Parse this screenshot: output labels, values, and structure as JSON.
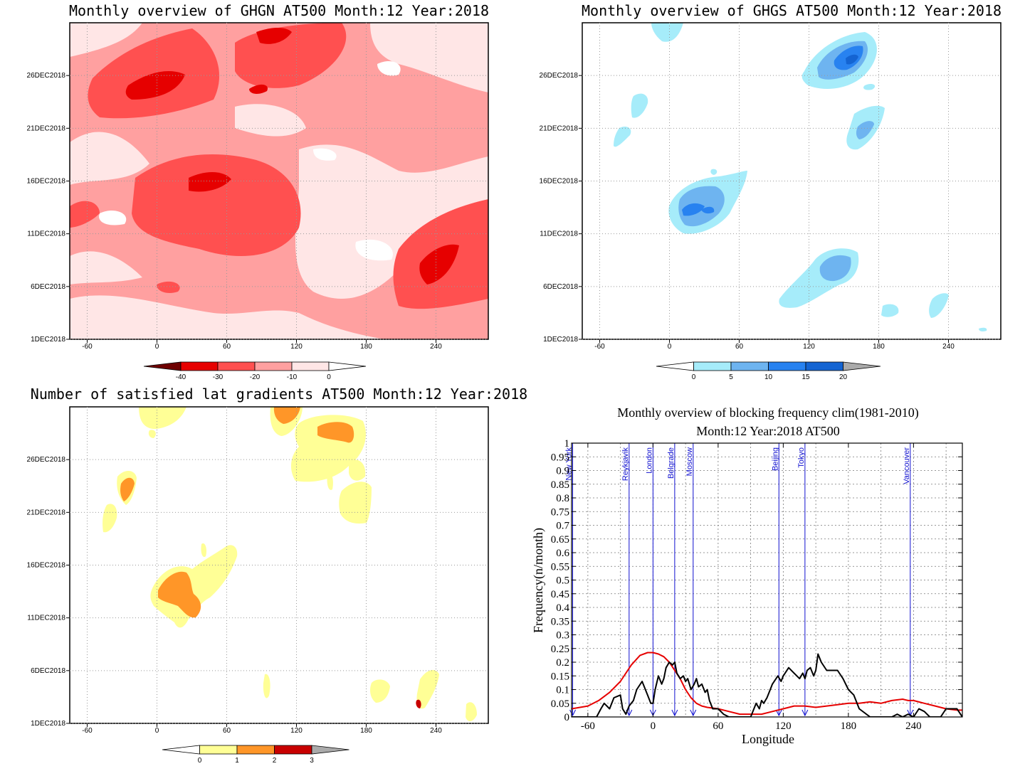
{
  "panels": {
    "ghgn": {
      "title": "Monthly overview of GHGN AT500 Month:12 Year:2018",
      "x_ticks": [
        "-60",
        "0",
        "60",
        "120",
        "180",
        "240"
      ],
      "y_ticks": [
        "1DEC2018",
        "6DEC2018",
        "11DEC2018",
        "16DEC2018",
        "21DEC2018",
        "26DEC2018"
      ],
      "colorbar_labels": [
        "-40",
        "-30",
        "-20",
        "-10",
        "0"
      ],
      "colors": [
        "#6e0000",
        "#e60000",
        "#ff5050",
        "#ffa0a0",
        "#ffe6e6",
        "#ffffff"
      ]
    },
    "ghgs": {
      "title": "Monthly overview of GHGS AT500 Month:12 Year:2018",
      "x_ticks": [
        "-60",
        "0",
        "60",
        "120",
        "180",
        "240"
      ],
      "y_ticks": [
        "1DEC2018",
        "6DEC2018",
        "11DEC2018",
        "16DEC2018",
        "21DEC2018",
        "26DEC2018"
      ],
      "colorbar_labels": [
        "0",
        "5",
        "10",
        "15",
        "20"
      ],
      "colors": [
        "#ffffff",
        "#a6ecfa",
        "#6eb4f0",
        "#2882f0",
        "#1464d2",
        "#aaaaaa"
      ]
    },
    "lat": {
      "title": "Number of satisfied lat gradients AT500 Month:12 Year:2018",
      "x_ticks": [
        "-60",
        "0",
        "60",
        "120",
        "180",
        "240"
      ],
      "y_ticks": [
        "1DEC2018",
        "6DEC2018",
        "11DEC2018",
        "16DEC2018",
        "21DEC2018",
        "26DEC2018"
      ],
      "colorbar_labels": [
        "0",
        "1",
        "2",
        "3"
      ],
      "colors": [
        "#ffffff",
        "#ffff96",
        "#ff9628",
        "#c80000",
        "#aaaaaa"
      ]
    }
  },
  "chart_data": {
    "type": "line",
    "title": "Monthly overview of blocking frequency clim(1981-2010)",
    "subtitle": "Month:12 Year:2018  AT500",
    "xlabel": "Longitude",
    "ylabel": "Frequency(n/month)",
    "xlim": [
      -75,
      285
    ],
    "ylim": [
      0,
      1
    ],
    "x_ticks": [
      "-60",
      "0",
      "60",
      "120",
      "180",
      "240"
    ],
    "y_ticks": [
      "0",
      "0.05",
      "0.1",
      "0.15",
      "0.2",
      "0.25",
      "0.3",
      "0.35",
      "0.4",
      "0.45",
      "0.5",
      "0.55",
      "0.6",
      "0.65",
      "0.7",
      "0.75",
      "0.8",
      "0.85",
      "0.9",
      "0.95",
      "1"
    ],
    "grid": true,
    "cities": [
      {
        "name": "New York",
        "lon": -74
      },
      {
        "name": "Reykjavik",
        "lon": -22
      },
      {
        "name": "London",
        "lon": 0
      },
      {
        "name": "Belgrade",
        "lon": 20
      },
      {
        "name": "Moscow",
        "lon": 37
      },
      {
        "name": "Beijing",
        "lon": 116
      },
      {
        "name": "Tokyo",
        "lon": 140
      },
      {
        "name": "Vancouver",
        "lon": 237
      }
    ],
    "series": [
      {
        "color": "#e60000",
        "x": [
          -75,
          -60,
          -50,
          -40,
          -30,
          -20,
          -12,
          -5,
          0,
          5,
          10,
          15,
          20,
          25,
          30,
          35,
          40,
          45,
          50,
          60,
          70,
          80,
          90,
          100,
          110,
          120,
          130,
          140,
          150,
          160,
          170,
          180,
          190,
          200,
          210,
          220,
          230,
          235,
          240,
          250,
          260,
          270,
          280,
          285
        ],
        "y": [
          0.03,
          0.04,
          0.06,
          0.09,
          0.13,
          0.19,
          0.225,
          0.235,
          0.235,
          0.23,
          0.22,
          0.2,
          0.17,
          0.14,
          0.1,
          0.07,
          0.05,
          0.04,
          0.035,
          0.03,
          0.02,
          0.01,
          0.01,
          0.01,
          0.02,
          0.03,
          0.04,
          0.04,
          0.035,
          0.04,
          0.045,
          0.05,
          0.05,
          0.055,
          0.05,
          0.06,
          0.065,
          0.06,
          0.06,
          0.05,
          0.04,
          0.03,
          0.025,
          0.025
        ]
      },
      {
        "color": "#000000",
        "x": [
          -75,
          -52,
          -48,
          -45,
          -40,
          -36,
          -30,
          -28,
          -25,
          -22,
          -18,
          -15,
          -10,
          -5,
          -2,
          0,
          2,
          5,
          8,
          10,
          12,
          15,
          18,
          20,
          22,
          25,
          28,
          30,
          32,
          35,
          38,
          40,
          42,
          45,
          48,
          50,
          52,
          55,
          60,
          65,
          70,
          80,
          90,
          95,
          98,
          100,
          102,
          105,
          108,
          110,
          115,
          118,
          120,
          125,
          130,
          135,
          138,
          140,
          142,
          145,
          148,
          150,
          152,
          155,
          160,
          165,
          170,
          175,
          180,
          185,
          190,
          200,
          210,
          220,
          225,
          230,
          235,
          240,
          245,
          250,
          255,
          260,
          265,
          270,
          275,
          280,
          285
        ],
        "y": [
          0,
          0,
          0.03,
          0.05,
          0.03,
          0.07,
          0.08,
          0.03,
          0.01,
          0.04,
          0.06,
          0.1,
          0.13,
          0.08,
          0.05,
          0.05,
          0.1,
          0.15,
          0.12,
          0.14,
          0.18,
          0.2,
          0.19,
          0.2,
          0.16,
          0.14,
          0.15,
          0.13,
          0.14,
          0.1,
          0.12,
          0.14,
          0.11,
          0.12,
          0.09,
          0.1,
          0.06,
          0.03,
          0.03,
          0.01,
          0,
          0,
          0,
          0.05,
          0.03,
          0.06,
          0.05,
          0.07,
          0.1,
          0.12,
          0.15,
          0.13,
          0.15,
          0.18,
          0.16,
          0.14,
          0.16,
          0.14,
          0.17,
          0.18,
          0.15,
          0.17,
          0.23,
          0.2,
          0.17,
          0.17,
          0.17,
          0.14,
          0.1,
          0.08,
          0.03,
          0,
          0,
          0,
          0.01,
          0,
          0.01,
          0,
          0.03,
          0.02,
          0,
          0,
          0,
          0.03,
          0.03,
          0.03,
          0
        ]
      }
    ]
  }
}
